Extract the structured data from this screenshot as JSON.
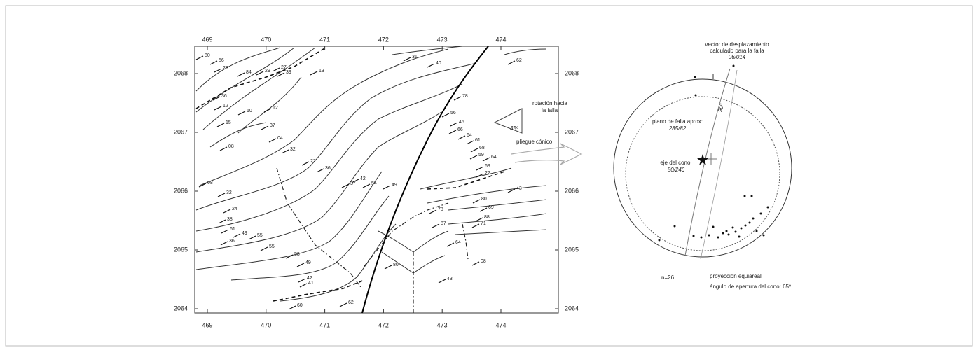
{
  "map": {
    "xticks": [
      469,
      470,
      471,
      472,
      473,
      474
    ],
    "yticks": [
      2068,
      2067,
      2066,
      2065,
      2064
    ],
    "dip_labels": [
      "80",
      "56",
      "23",
      "84",
      "29",
      "27",
      "39",
      "13",
      "31",
      "40",
      "62",
      "36",
      "12",
      "10",
      "12",
      "78",
      "15",
      "37",
      "08",
      "04",
      "32",
      "56",
      "46",
      "66",
      "64",
      "61",
      "68",
      "59",
      "64",
      "69",
      "22",
      "22",
      "36",
      "42",
      "37",
      "54",
      "49",
      "08",
      "32",
      "43",
      "24",
      "80",
      "69",
      "38",
      "78",
      "61",
      "49",
      "55",
      "88",
      "87",
      "71",
      "36",
      "55",
      "58",
      "49",
      "64",
      "80",
      "08",
      "42",
      "41",
      "43",
      "60",
      "62"
    ],
    "rotation_label": [
      "rotación hacia",
      "la falla"
    ],
    "angle_label": "35º",
    "fold_label": "pliegue cónico"
  },
  "stereonet": {
    "vector_label": [
      "vector de desplazamiento",
      "calculado para la falla"
    ],
    "vector_value": "06/014",
    "plane_label": "plano de falla aprox:",
    "plane_value": "285/82",
    "axis_label": "eje del cono:",
    "axis_value": "80/246",
    "angle_90": "90º",
    "n": "n=26",
    "projection": "proyección equiareal",
    "opening": "ángulo de apertura del cono: 65º"
  }
}
